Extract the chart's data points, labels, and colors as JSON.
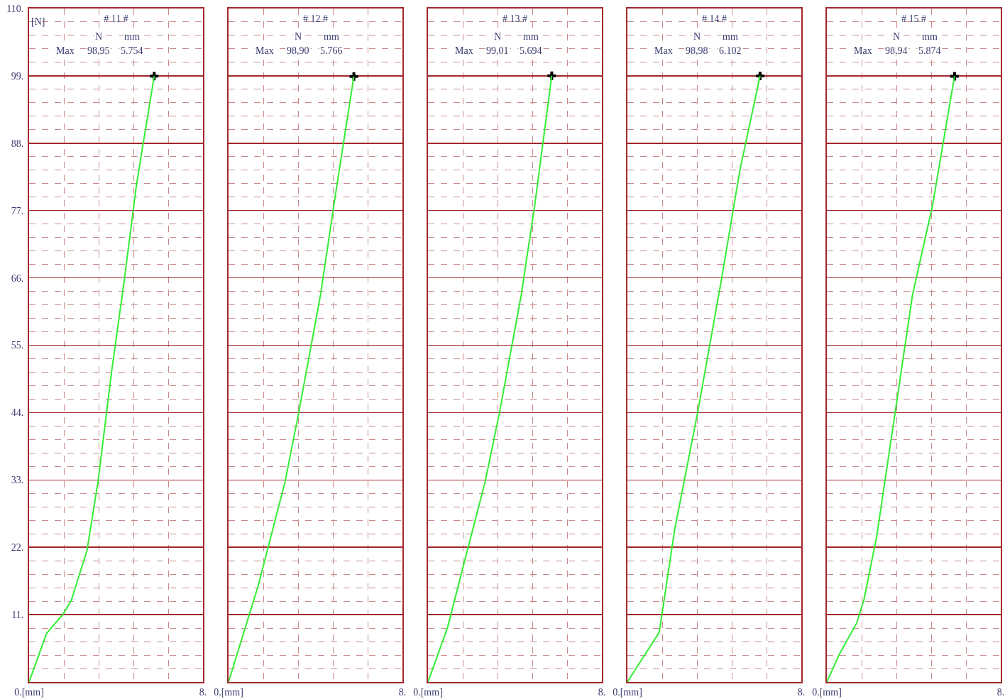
{
  "chart_data": [
    {
      "type": "line",
      "title": "# 11 #",
      "ylabel": "[N]",
      "annotations": [
        "N",
        "mm",
        "Max",
        "98,95",
        "5.754"
      ],
      "xlim": [
        0,
        8
      ],
      "ylim": [
        0,
        110
      ],
      "xticks": [
        {
          "value": 0,
          "label": "0.[mm]"
        },
        {
          "value": 1.6,
          "label": null
        },
        {
          "value": 3.2,
          "label": null
        },
        {
          "value": 4.8,
          "label": null
        },
        {
          "value": 6.4,
          "label": null
        },
        {
          "value": 8,
          "label": "8."
        }
      ],
      "yticks": [
        {
          "value": 0,
          "label": null
        },
        {
          "value": 2.2,
          "label": null
        },
        {
          "value": 4.4,
          "label": null
        },
        {
          "value": 6.6,
          "label": null
        },
        {
          "value": 8.8,
          "label": null
        },
        {
          "value": 11,
          "label": "11."
        },
        {
          "value": 13.2,
          "label": null
        },
        {
          "value": 15.4,
          "label": null
        },
        {
          "value": 17.6,
          "label": null
        },
        {
          "value": 19.8,
          "label": null
        },
        {
          "value": 22,
          "label": "22."
        },
        {
          "value": 24.2,
          "label": null
        },
        {
          "value": 26.4,
          "label": null
        },
        {
          "value": 28.6,
          "label": null
        },
        {
          "value": 30.8,
          "label": null
        },
        {
          "value": 33,
          "label": "33."
        },
        {
          "value": 35.2,
          "label": null
        },
        {
          "value": 37.4,
          "label": null
        },
        {
          "value": 39.6,
          "label": null
        },
        {
          "value": 41.8,
          "label": null
        },
        {
          "value": 44,
          "label": "44."
        },
        {
          "value": 46.2,
          "label": null
        },
        {
          "value": 48.4,
          "label": null
        },
        {
          "value": 50.6,
          "label": null
        },
        {
          "value": 52.8,
          "label": null
        },
        {
          "value": 55,
          "label": "55."
        },
        {
          "value": 57.2,
          "label": null
        },
        {
          "value": 59.4,
          "label": null
        },
        {
          "value": 61.6,
          "label": null
        },
        {
          "value": 63.8,
          "label": null
        },
        {
          "value": 66,
          "label": "66."
        },
        {
          "value": 68.2,
          "label": null
        },
        {
          "value": 70.4,
          "label": null
        },
        {
          "value": 72.6,
          "label": null
        },
        {
          "value": 74.8,
          "label": null
        },
        {
          "value": 77,
          "label": "77."
        },
        {
          "value": 79.2,
          "label": null
        },
        {
          "value": 81.4,
          "label": null
        },
        {
          "value": 83.6,
          "label": null
        },
        {
          "value": 85.8,
          "label": null
        },
        {
          "value": 88,
          "label": "88."
        },
        {
          "value": 90.2,
          "label": null
        },
        {
          "value": 92.4,
          "label": null
        },
        {
          "value": 94.6,
          "label": null
        },
        {
          "value": 96.8,
          "label": null
        },
        {
          "value": 99,
          "label": "99."
        },
        {
          "value": 101.2,
          "label": null
        },
        {
          "value": 103.4,
          "label": null
        },
        {
          "value": 105.6,
          "label": null
        },
        {
          "value": 107.8,
          "label": null
        },
        {
          "value": 110,
          "label": "110."
        }
      ],
      "grid": true,
      "line_style": "solid",
      "series": [
        {
          "color": "#33ee33",
          "x": [
            0,
            0.8,
            1.57,
            1.94,
            2.31,
            2.66,
            3.17,
            3.8,
            4.37,
            4.94,
            5.754
          ],
          "values": [
            0,
            7.9,
            11.1,
            13.3,
            17.5,
            21.4,
            32.7,
            50.8,
            65.4,
            81.2,
            98.95
          ]
        },
        {
          "type": "scatter",
          "marker": "cross",
          "color": "#000000",
          "x": [
            5.754
          ],
          "values": [
            98.95
          ]
        }
      ]
    },
    {
      "type": "line",
      "title": "# 12 #",
      "annotations": [
        "N",
        "mm",
        "Max",
        "98,90",
        "5.766"
      ],
      "xlim": [
        0,
        8
      ],
      "ylim": [
        0,
        110
      ],
      "xticks": [
        {
          "value": 0,
          "label": "0.[mm]"
        },
        {
          "value": 1.6,
          "label": null
        },
        {
          "value": 3.2,
          "label": null
        },
        {
          "value": 4.8,
          "label": null
        },
        {
          "value": 6.4,
          "label": null
        },
        {
          "value": 8,
          "label": "8."
        }
      ],
      "yticks": [
        {
          "value": 0,
          "label": null
        },
        {
          "value": 2.2,
          "label": null
        },
        {
          "value": 4.4,
          "label": null
        },
        {
          "value": 6.6,
          "label": null
        },
        {
          "value": 8.8,
          "label": null
        },
        {
          "value": 11,
          "label": null
        },
        {
          "value": 13.2,
          "label": null
        },
        {
          "value": 15.4,
          "label": null
        },
        {
          "value": 17.6,
          "label": null
        },
        {
          "value": 19.8,
          "label": null
        },
        {
          "value": 22,
          "label": null
        },
        {
          "value": 24.2,
          "label": null
        },
        {
          "value": 26.4,
          "label": null
        },
        {
          "value": 28.6,
          "label": null
        },
        {
          "value": 30.8,
          "label": null
        },
        {
          "value": 33,
          "label": null
        },
        {
          "value": 35.2,
          "label": null
        },
        {
          "value": 37.4,
          "label": null
        },
        {
          "value": 39.6,
          "label": null
        },
        {
          "value": 41.8,
          "label": null
        },
        {
          "value": 44,
          "label": null
        },
        {
          "value": 46.2,
          "label": null
        },
        {
          "value": 48.4,
          "label": null
        },
        {
          "value": 50.6,
          "label": null
        },
        {
          "value": 52.8,
          "label": null
        },
        {
          "value": 55,
          "label": null
        },
        {
          "value": 57.2,
          "label": null
        },
        {
          "value": 59.4,
          "label": null
        },
        {
          "value": 61.6,
          "label": null
        },
        {
          "value": 63.8,
          "label": null
        },
        {
          "value": 66,
          "label": null
        },
        {
          "value": 68.2,
          "label": null
        },
        {
          "value": 70.4,
          "label": null
        },
        {
          "value": 72.6,
          "label": null
        },
        {
          "value": 74.8,
          "label": null
        },
        {
          "value": 77,
          "label": null
        },
        {
          "value": 79.2,
          "label": null
        },
        {
          "value": 81.4,
          "label": null
        },
        {
          "value": 83.6,
          "label": null
        },
        {
          "value": 85.8,
          "label": null
        },
        {
          "value": 88,
          "label": null
        },
        {
          "value": 90.2,
          "label": null
        },
        {
          "value": 92.4,
          "label": null
        },
        {
          "value": 94.6,
          "label": null
        },
        {
          "value": 96.8,
          "label": null
        },
        {
          "value": 99,
          "label": null
        },
        {
          "value": 101.2,
          "label": null
        },
        {
          "value": 103.4,
          "label": null
        },
        {
          "value": 105.6,
          "label": null
        },
        {
          "value": 107.8,
          "label": null
        },
        {
          "value": 110,
          "label": null
        }
      ],
      "tick_labels": "x",
      "grid": true,
      "line_style": "solid",
      "series": [
        {
          "color": "#33ee33",
          "x": [
            0,
            1.37,
            2.6,
            3.23,
            4.23,
            4.94,
            5.766
          ],
          "values": [
            0,
            15.8,
            32.7,
            44,
            63.2,
            80.1,
            98.9
          ]
        },
        {
          "type": "scatter",
          "marker": "cross",
          "color": "#000000",
          "x": [
            5.766
          ],
          "values": [
            98.9
          ]
        }
      ]
    },
    {
      "type": "line",
      "title": "# 13 #",
      "annotations": [
        "N",
        "mm",
        "Max",
        "99,01",
        "5.694"
      ],
      "xlim": [
        0,
        8
      ],
      "ylim": [
        0,
        110
      ],
      "xticks": [
        {
          "value": 0,
          "label": "0.[mm]"
        },
        {
          "value": 1.6,
          "label": null
        },
        {
          "value": 3.2,
          "label": null
        },
        {
          "value": 4.8,
          "label": null
        },
        {
          "value": 6.4,
          "label": null
        },
        {
          "value": 8,
          "label": "8."
        }
      ],
      "yticks": [
        {
          "value": 0,
          "label": null
        },
        {
          "value": 2.2,
          "label": null
        },
        {
          "value": 4.4,
          "label": null
        },
        {
          "value": 6.6,
          "label": null
        },
        {
          "value": 8.8,
          "label": null
        },
        {
          "value": 11,
          "label": null
        },
        {
          "value": 13.2,
          "label": null
        },
        {
          "value": 15.4,
          "label": null
        },
        {
          "value": 17.6,
          "label": null
        },
        {
          "value": 19.8,
          "label": null
        },
        {
          "value": 22,
          "label": null
        },
        {
          "value": 24.2,
          "label": null
        },
        {
          "value": 26.4,
          "label": null
        },
        {
          "value": 28.6,
          "label": null
        },
        {
          "value": 30.8,
          "label": null
        },
        {
          "value": 33,
          "label": null
        },
        {
          "value": 35.2,
          "label": null
        },
        {
          "value": 37.4,
          "label": null
        },
        {
          "value": 39.6,
          "label": null
        },
        {
          "value": 41.8,
          "label": null
        },
        {
          "value": 44,
          "label": null
        },
        {
          "value": 46.2,
          "label": null
        },
        {
          "value": 48.4,
          "label": null
        },
        {
          "value": 50.6,
          "label": null
        },
        {
          "value": 52.8,
          "label": null
        },
        {
          "value": 55,
          "label": null
        },
        {
          "value": 57.2,
          "label": null
        },
        {
          "value": 59.4,
          "label": null
        },
        {
          "value": 61.6,
          "label": null
        },
        {
          "value": 63.8,
          "label": null
        },
        {
          "value": 66,
          "label": null
        },
        {
          "value": 68.2,
          "label": null
        },
        {
          "value": 70.4,
          "label": null
        },
        {
          "value": 72.6,
          "label": null
        },
        {
          "value": 74.8,
          "label": null
        },
        {
          "value": 77,
          "label": null
        },
        {
          "value": 79.2,
          "label": null
        },
        {
          "value": 81.4,
          "label": null
        },
        {
          "value": 83.6,
          "label": null
        },
        {
          "value": 85.8,
          "label": null
        },
        {
          "value": 88,
          "label": null
        },
        {
          "value": 90.2,
          "label": null
        },
        {
          "value": 92.4,
          "label": null
        },
        {
          "value": 94.6,
          "label": null
        },
        {
          "value": 96.8,
          "label": null
        },
        {
          "value": 99,
          "label": null
        },
        {
          "value": 101.2,
          "label": null
        },
        {
          "value": 103.4,
          "label": null
        },
        {
          "value": 105.6,
          "label": null
        },
        {
          "value": 107.8,
          "label": null
        },
        {
          "value": 110,
          "label": null
        }
      ],
      "tick_labels": "x",
      "grid": true,
      "line_style": "solid",
      "series": [
        {
          "color": "#33ee33",
          "x": [
            0,
            0.91,
            1.63,
            2.63,
            3.29,
            4.29,
            4.91,
            5.694
          ],
          "values": [
            0,
            9,
            19,
            32.7,
            44,
            63.2,
            77.8,
            99.01
          ]
        },
        {
          "type": "scatter",
          "marker": "cross",
          "color": "#000000",
          "x": [
            5.694
          ],
          "values": [
            99.01
          ]
        }
      ]
    },
    {
      "type": "line",
      "title": "# 14 #",
      "annotations": [
        "N",
        "mm",
        "Max",
        "98,98",
        "6.102"
      ],
      "xlim": [
        0,
        8
      ],
      "ylim": [
        0,
        110
      ],
      "xticks": [
        {
          "value": 0,
          "label": "0.[mm]"
        },
        {
          "value": 1.6,
          "label": null
        },
        {
          "value": 3.2,
          "label": null
        },
        {
          "value": 4.8,
          "label": null
        },
        {
          "value": 6.4,
          "label": null
        },
        {
          "value": 8,
          "label": "8."
        }
      ],
      "yticks": [
        {
          "value": 0,
          "label": null
        },
        {
          "value": 2.2,
          "label": null
        },
        {
          "value": 4.4,
          "label": null
        },
        {
          "value": 6.6,
          "label": null
        },
        {
          "value": 8.8,
          "label": null
        },
        {
          "value": 11,
          "label": null
        },
        {
          "value": 13.2,
          "label": null
        },
        {
          "value": 15.4,
          "label": null
        },
        {
          "value": 17.6,
          "label": null
        },
        {
          "value": 19.8,
          "label": null
        },
        {
          "value": 22,
          "label": null
        },
        {
          "value": 24.2,
          "label": null
        },
        {
          "value": 26.4,
          "label": null
        },
        {
          "value": 28.6,
          "label": null
        },
        {
          "value": 30.8,
          "label": null
        },
        {
          "value": 33,
          "label": null
        },
        {
          "value": 35.2,
          "label": null
        },
        {
          "value": 37.4,
          "label": null
        },
        {
          "value": 39.6,
          "label": null
        },
        {
          "value": 41.8,
          "label": null
        },
        {
          "value": 44,
          "label": null
        },
        {
          "value": 46.2,
          "label": null
        },
        {
          "value": 48.4,
          "label": null
        },
        {
          "value": 50.6,
          "label": null
        },
        {
          "value": 52.8,
          "label": null
        },
        {
          "value": 55,
          "label": null
        },
        {
          "value": 57.2,
          "label": null
        },
        {
          "value": 59.4,
          "label": null
        },
        {
          "value": 61.6,
          "label": null
        },
        {
          "value": 63.8,
          "label": null
        },
        {
          "value": 66,
          "label": null
        },
        {
          "value": 68.2,
          "label": null
        },
        {
          "value": 70.4,
          "label": null
        },
        {
          "value": 72.6,
          "label": null
        },
        {
          "value": 74.8,
          "label": null
        },
        {
          "value": 77,
          "label": null
        },
        {
          "value": 79.2,
          "label": null
        },
        {
          "value": 81.4,
          "label": null
        },
        {
          "value": 83.6,
          "label": null
        },
        {
          "value": 85.8,
          "label": null
        },
        {
          "value": 88,
          "label": null
        },
        {
          "value": 90.2,
          "label": null
        },
        {
          "value": 92.4,
          "label": null
        },
        {
          "value": 94.6,
          "label": null
        },
        {
          "value": 96.8,
          "label": null
        },
        {
          "value": 99,
          "label": null
        },
        {
          "value": 101.2,
          "label": null
        },
        {
          "value": 103.4,
          "label": null
        },
        {
          "value": 105.6,
          "label": null
        },
        {
          "value": 107.8,
          "label": null
        },
        {
          "value": 110,
          "label": null
        }
      ],
      "tick_labels": "x",
      "grid": true,
      "line_style": "solid",
      "series": [
        {
          "color": "#33ee33",
          "x": [
            0,
            1.46,
            1.6,
            2.17,
            3.23,
            4.31,
            5.17,
            6.102
          ],
          "values": [
            0,
            8.1,
            11.3,
            24.8,
            44,
            65.4,
            83.5,
            98.98
          ]
        },
        {
          "type": "scatter",
          "marker": "cross",
          "color": "#000000",
          "x": [
            6.102
          ],
          "values": [
            98.98
          ]
        }
      ]
    },
    {
      "type": "line",
      "title": "# 15 #",
      "annotations": [
        "N",
        "mm",
        "Max",
        "98,94",
        "5.874"
      ],
      "xlim": [
        0,
        8
      ],
      "ylim": [
        0,
        110
      ],
      "xticks": [
        {
          "value": 0,
          "label": "0.[mm]"
        },
        {
          "value": 1.6,
          "label": null
        },
        {
          "value": 3.2,
          "label": null
        },
        {
          "value": 4.8,
          "label": null
        },
        {
          "value": 6.4,
          "label": null
        },
        {
          "value": 8,
          "label": "8."
        }
      ],
      "yticks": [
        {
          "value": 0,
          "label": null
        },
        {
          "value": 2.2,
          "label": null
        },
        {
          "value": 4.4,
          "label": null
        },
        {
          "value": 6.6,
          "label": null
        },
        {
          "value": 8.8,
          "label": null
        },
        {
          "value": 11,
          "label": null
        },
        {
          "value": 13.2,
          "label": null
        },
        {
          "value": 15.4,
          "label": null
        },
        {
          "value": 17.6,
          "label": null
        },
        {
          "value": 19.8,
          "label": null
        },
        {
          "value": 22,
          "label": null
        },
        {
          "value": 24.2,
          "label": null
        },
        {
          "value": 26.4,
          "label": null
        },
        {
          "value": 28.6,
          "label": null
        },
        {
          "value": 30.8,
          "label": null
        },
        {
          "value": 33,
          "label": null
        },
        {
          "value": 35.2,
          "label": null
        },
        {
          "value": 37.4,
          "label": null
        },
        {
          "value": 39.6,
          "label": null
        },
        {
          "value": 41.8,
          "label": null
        },
        {
          "value": 44,
          "label": null
        },
        {
          "value": 46.2,
          "label": null
        },
        {
          "value": 48.4,
          "label": null
        },
        {
          "value": 50.6,
          "label": null
        },
        {
          "value": 52.8,
          "label": null
        },
        {
          "value": 55,
          "label": null
        },
        {
          "value": 57.2,
          "label": null
        },
        {
          "value": 59.4,
          "label": null
        },
        {
          "value": 61.6,
          "label": null
        },
        {
          "value": 63.8,
          "label": null
        },
        {
          "value": 66,
          "label": null
        },
        {
          "value": 68.2,
          "label": null
        },
        {
          "value": 70.4,
          "label": null
        },
        {
          "value": 72.6,
          "label": null
        },
        {
          "value": 74.8,
          "label": null
        },
        {
          "value": 77,
          "label": null
        },
        {
          "value": 79.2,
          "label": null
        },
        {
          "value": 81.4,
          "label": null
        },
        {
          "value": 83.6,
          "label": null
        },
        {
          "value": 85.8,
          "label": null
        },
        {
          "value": 88,
          "label": null
        },
        {
          "value": 90.2,
          "label": null
        },
        {
          "value": 92.4,
          "label": null
        },
        {
          "value": 94.6,
          "label": null
        },
        {
          "value": 96.8,
          "label": null
        },
        {
          "value": 99,
          "label": null
        },
        {
          "value": 101.2,
          "label": null
        },
        {
          "value": 103.4,
          "label": null
        },
        {
          "value": 105.6,
          "label": null
        },
        {
          "value": 107.8,
          "label": null
        },
        {
          "value": 110,
          "label": null
        }
      ],
      "tick_labels": "x",
      "grid": true,
      "line_style": "solid",
      "series": [
        {
          "color": "#33ee33",
          "x": [
            0,
            0.57,
            1.37,
            1.71,
            2.29,
            3.14,
            3.94,
            4.86,
            5.874
          ],
          "values": [
            0,
            4.5,
            9.6,
            13.5,
            23.7,
            44,
            63.2,
            77.8,
            98.94
          ]
        },
        {
          "type": "scatter",
          "marker": "cross",
          "color": "#000000",
          "x": [
            5.874
          ],
          "values": [
            98.94
          ]
        }
      ]
    }
  ]
}
